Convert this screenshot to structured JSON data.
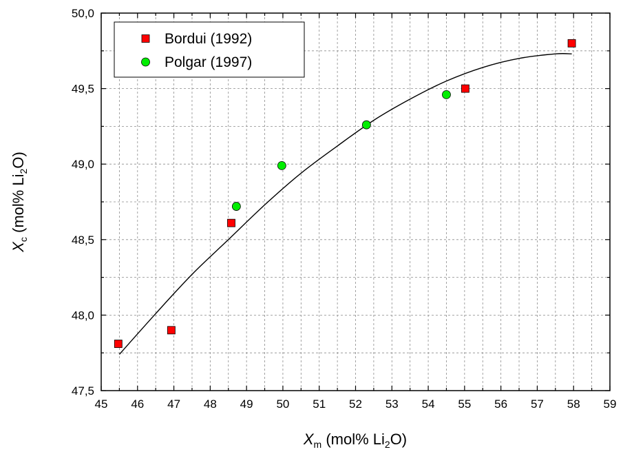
{
  "chart_data": {
    "type": "scatter",
    "title": "",
    "xlabel": {
      "main": "X",
      "sub": "m",
      "unit_pre": " (mol% Li",
      "unit_sub": "2",
      "unit_post": "O)"
    },
    "ylabel": {
      "main": "X",
      "sub": "c",
      "unit_pre": " (mol% Li",
      "unit_sub": "2",
      "unit_post": "O)"
    },
    "xlim": [
      45,
      59
    ],
    "ylim": [
      47.5,
      50.0
    ],
    "x_ticks": [
      45,
      46,
      47,
      48,
      49,
      50,
      51,
      52,
      53,
      54,
      55,
      56,
      57,
      58,
      59
    ],
    "x_tick_labels": [
      "45",
      "46",
      "47",
      "48",
      "49",
      "50",
      "51",
      "52",
      "53",
      "54",
      "55",
      "56",
      "57",
      "58",
      "59"
    ],
    "y_ticks": [
      47.5,
      48.0,
      48.5,
      49.0,
      49.5,
      50.0
    ],
    "y_tick_labels": [
      "47,5",
      "48,0",
      "48,5",
      "49,0",
      "49,5",
      "50,0"
    ],
    "grid": "dashed at major and minor ticks",
    "legend_position": "top-left",
    "series": [
      {
        "name": "Bordui (1992)",
        "marker": "square",
        "color": "#ff0000",
        "x": [
          45.47,
          46.93,
          48.58,
          55.02,
          57.95
        ],
        "y": [
          47.81,
          47.9,
          48.61,
          49.5,
          49.8
        ]
      },
      {
        "name": "Polgar (1997)",
        "marker": "circle",
        "color": "#00ee00",
        "x": [
          48.72,
          49.97,
          52.3,
          54.5
        ],
        "y": [
          48.72,
          48.99,
          49.26,
          49.46
        ]
      }
    ],
    "fit_curve": {
      "type": "line",
      "color": "#000000",
      "x": [
        45.5,
        46.5,
        47.5,
        48.5,
        49.5,
        50.5,
        51.5,
        52.5,
        53.5,
        54.5,
        55.5,
        56.5,
        57.5,
        57.95
      ],
      "y": [
        47.74,
        48.01,
        48.27,
        48.5,
        48.73,
        48.94,
        49.12,
        49.29,
        49.43,
        49.55,
        49.64,
        49.7,
        49.73,
        49.73
      ]
    }
  }
}
